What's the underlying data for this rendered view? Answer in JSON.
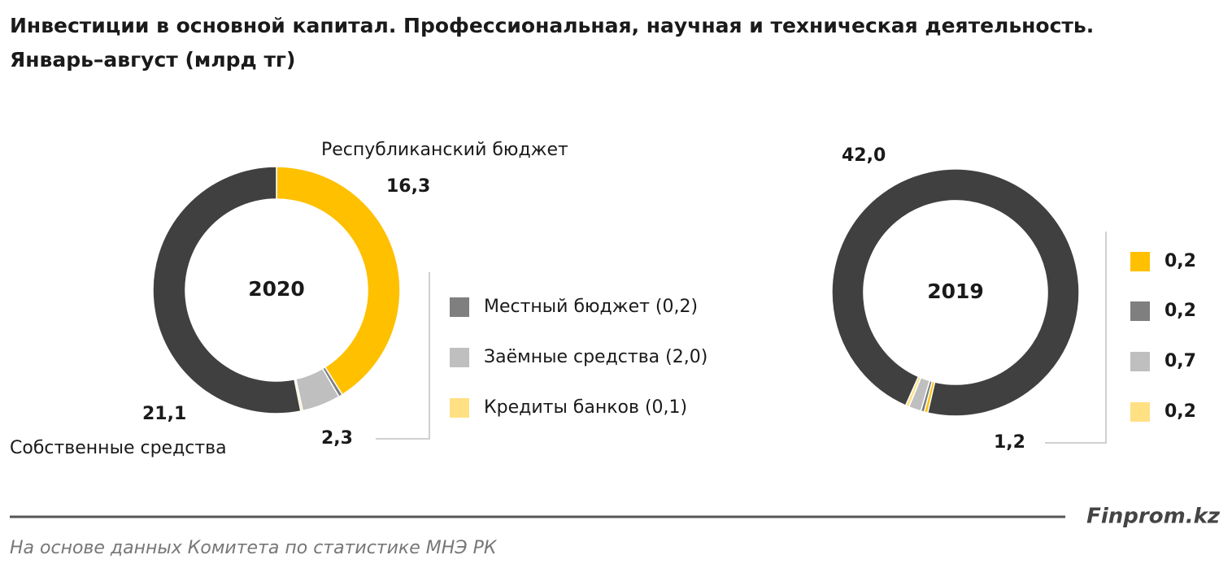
{
  "title": [
    "Инвестиции в основной капитал. Профессиональная, научная и техническая деятельность.",
    "Январь–август (млрд тг)"
  ],
  "brand": "Finprom.kz",
  "source": "На основе данных Комитета по статистике МНЭ РК",
  "chart_data": [
    {
      "type": "donut",
      "label": "2020",
      "categories": [
        "Республиканский бюджет",
        "Местный бюджет (0,2)",
        "Заёмные средства (2,0)",
        "Кредиты банков (0,1)",
        "Собственные средства"
      ],
      "values": [
        16.3,
        0.2,
        2.0,
        0.1,
        21.1
      ],
      "value_labels": [
        "16,3",
        null,
        null,
        null,
        "21,1"
      ],
      "colors": [
        "#ffc000",
        "#7f7f7f",
        "#bfbfbf",
        "#ffe083",
        "#404040"
      ],
      "group_total": {
        "value": 2.3,
        "label": "2,3"
      }
    },
    {
      "type": "donut",
      "label": "2019",
      "categories": [
        null,
        null,
        null,
        null,
        null
      ],
      "values": [
        0.2,
        0.2,
        0.7,
        0.2,
        42.0
      ],
      "value_labels": [
        "0,2",
        "0,2",
        "0,7",
        "0,2",
        "42,0"
      ],
      "colors": [
        "#ffc000",
        "#7f7f7f",
        "#bfbfbf",
        "#ffe083",
        "#404040"
      ],
      "group_total": {
        "value": 1.2,
        "label": "1,2"
      }
    }
  ]
}
